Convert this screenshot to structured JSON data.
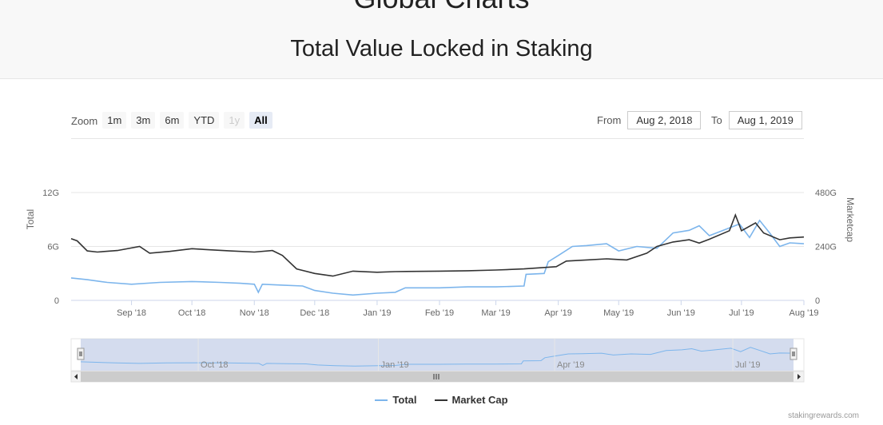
{
  "header": {
    "site_title": "Global Charts",
    "page_title": "Total Value Locked in Staking"
  },
  "zoom": {
    "label": "Zoom",
    "buttons": [
      "1m",
      "3m",
      "6m",
      "YTD",
      "1y",
      "All"
    ],
    "active": "All",
    "disabled": [
      "1y"
    ]
  },
  "range": {
    "from_label": "From",
    "from_value": "Aug 2, 2018",
    "to_label": "To",
    "to_value": "Aug 1, 2019"
  },
  "credit": "stakingrewards.com",
  "colors": {
    "total": "#7cb5ec",
    "market_cap": "#333333",
    "navigator_fill": "#ccd6eb"
  },
  "chart_data": {
    "type": "line",
    "title": "",
    "x_range": [
      "2018-08-02",
      "2019-08-01"
    ],
    "x_tick_labels": [
      "Sep '18",
      "Oct '18",
      "Nov '18",
      "Dec '18",
      "Jan '19",
      "Feb '19",
      "Mar '19",
      "Apr '19",
      "May '19",
      "Jun '19",
      "Jul '19",
      "Aug '19"
    ],
    "y_left": {
      "label": "Total",
      "range": [
        0,
        12
      ],
      "unit": "G",
      "tick_labels": [
        "0",
        "6G",
        "12G"
      ]
    },
    "y_right": {
      "label": "Marketcap",
      "range": [
        0,
        480
      ],
      "unit": "G",
      "tick_labels": [
        "0",
        "240G",
        "480G"
      ]
    },
    "grid": true,
    "legend_position": "bottom-center",
    "navigator": {
      "tick_labels": [
        "Oct '18",
        "Jan '19",
        "Apr '19",
        "Jul '19"
      ]
    },
    "series": [
      {
        "name": "Total",
        "axis": "left",
        "points": [
          [
            "2018-08-02",
            2.5
          ],
          [
            "2018-08-10",
            2.3
          ],
          [
            "2018-08-20",
            2.0
          ],
          [
            "2018-09-01",
            1.8
          ],
          [
            "2018-09-15",
            2.0
          ],
          [
            "2018-10-01",
            2.1
          ],
          [
            "2018-10-15",
            2.0
          ],
          [
            "2018-10-25",
            1.9
          ],
          [
            "2018-11-01",
            1.8
          ],
          [
            "2018-11-03",
            0.9
          ],
          [
            "2018-11-05",
            1.8
          ],
          [
            "2018-11-15",
            1.7
          ],
          [
            "2018-11-25",
            1.6
          ],
          [
            "2018-12-01",
            1.1
          ],
          [
            "2018-12-10",
            0.8
          ],
          [
            "2018-12-20",
            0.6
          ],
          [
            "2019-01-01",
            0.8
          ],
          [
            "2019-01-10",
            0.9
          ],
          [
            "2019-01-15",
            1.4
          ],
          [
            "2019-02-01",
            1.4
          ],
          [
            "2019-02-15",
            1.5
          ],
          [
            "2019-03-01",
            1.5
          ],
          [
            "2019-03-15",
            1.6
          ],
          [
            "2019-03-16",
            2.9
          ],
          [
            "2019-03-25",
            3.0
          ],
          [
            "2019-03-27",
            4.3
          ],
          [
            "2019-04-01",
            5.0
          ],
          [
            "2019-04-08",
            6.0
          ],
          [
            "2019-04-15",
            6.1
          ],
          [
            "2019-04-25",
            6.3
          ],
          [
            "2019-05-01",
            5.5
          ],
          [
            "2019-05-10",
            6.0
          ],
          [
            "2019-05-20",
            5.8
          ],
          [
            "2019-05-28",
            7.5
          ],
          [
            "2019-06-05",
            7.8
          ],
          [
            "2019-06-10",
            8.3
          ],
          [
            "2019-06-15",
            7.2
          ],
          [
            "2019-06-22",
            7.8
          ],
          [
            "2019-06-30",
            8.5
          ],
          [
            "2019-07-05",
            7.0
          ],
          [
            "2019-07-10",
            8.9
          ],
          [
            "2019-07-15",
            7.5
          ],
          [
            "2019-07-20",
            6.0
          ],
          [
            "2019-07-25",
            6.4
          ],
          [
            "2019-08-01",
            6.3
          ]
        ]
      },
      {
        "name": "Market Cap",
        "axis": "right",
        "points": [
          [
            "2018-08-02",
            275
          ],
          [
            "2018-08-05",
            265
          ],
          [
            "2018-08-10",
            220
          ],
          [
            "2018-08-15",
            215
          ],
          [
            "2018-08-25",
            222
          ],
          [
            "2018-09-05",
            240
          ],
          [
            "2018-09-10",
            210
          ],
          [
            "2018-09-20",
            218
          ],
          [
            "2018-10-01",
            230
          ],
          [
            "2018-10-10",
            225
          ],
          [
            "2018-10-20",
            220
          ],
          [
            "2018-11-01",
            215
          ],
          [
            "2018-11-10",
            222
          ],
          [
            "2018-11-15",
            200
          ],
          [
            "2018-11-22",
            140
          ],
          [
            "2018-12-01",
            120
          ],
          [
            "2018-12-10",
            108
          ],
          [
            "2018-12-20",
            130
          ],
          [
            "2019-01-01",
            125
          ],
          [
            "2019-01-10",
            128
          ],
          [
            "2019-02-01",
            130
          ],
          [
            "2019-02-15",
            132
          ],
          [
            "2019-03-01",
            135
          ],
          [
            "2019-03-15",
            140
          ],
          [
            "2019-03-31",
            150
          ],
          [
            "2019-04-05",
            175
          ],
          [
            "2019-04-15",
            180
          ],
          [
            "2019-04-25",
            185
          ],
          [
            "2019-05-05",
            180
          ],
          [
            "2019-05-15",
            210
          ],
          [
            "2019-05-20",
            240
          ],
          [
            "2019-05-28",
            260
          ],
          [
            "2019-06-05",
            270
          ],
          [
            "2019-06-10",
            255
          ],
          [
            "2019-06-15",
            272
          ],
          [
            "2019-06-25",
            310
          ],
          [
            "2019-06-28",
            380
          ],
          [
            "2019-07-01",
            310
          ],
          [
            "2019-07-08",
            345
          ],
          [
            "2019-07-12",
            300
          ],
          [
            "2019-07-20",
            270
          ],
          [
            "2019-07-25",
            278
          ],
          [
            "2019-08-01",
            282
          ]
        ]
      }
    ]
  }
}
